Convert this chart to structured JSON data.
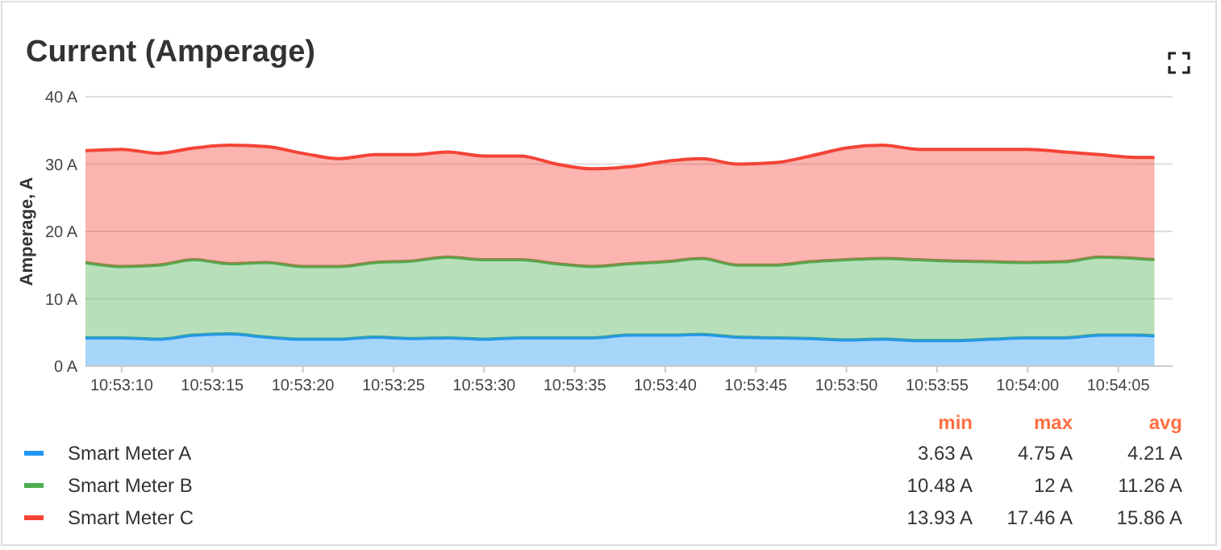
{
  "chart_data": {
    "type": "area",
    "title": "Current (Amperage)",
    "ylabel": "Amperage, A",
    "stacked": true,
    "grid": "y",
    "legend": "bottom",
    "x": [
      10.885556,
      10.886111,
      10.886667,
      10.887222,
      10.887778,
      10.888333,
      10.888889,
      10.889444,
      10.89,
      10.890556,
      10.891111,
      10.891667,
      10.892222,
      10.892778,
      10.893333,
      10.893889,
      10.894444,
      10.895,
      10.895556,
      10.896111,
      10.896667,
      10.897222,
      10.897778,
      10.898333,
      10.898889,
      10.899444,
      10.9,
      10.900556,
      10.901111,
      10.901667,
      10.901944
    ],
    "xlim": [
      10.885556,
      10.902222
    ],
    "xticks": [
      {
        "value": 10.886111,
        "label": "10:53:10"
      },
      {
        "value": 10.8875,
        "label": "10:53:15"
      },
      {
        "value": 10.888889,
        "label": "10:53:20"
      },
      {
        "value": 10.890278,
        "label": "10:53:25"
      },
      {
        "value": 10.891667,
        "label": "10:53:30"
      },
      {
        "value": 10.893056,
        "label": "10:53:35"
      },
      {
        "value": 10.894444,
        "label": "10:53:40"
      },
      {
        "value": 10.895833,
        "label": "10:53:45"
      },
      {
        "value": 10.897222,
        "label": "10:53:50"
      },
      {
        "value": 10.898611,
        "label": "10:53:55"
      },
      {
        "value": 10.9,
        "label": "10:54:00"
      },
      {
        "value": 10.901389,
        "label": "10:54:05"
      }
    ],
    "ylim": [
      0,
      40
    ],
    "yticks": [
      {
        "value": 0,
        "label": "0 A"
      },
      {
        "value": 10,
        "label": "10 A"
      },
      {
        "value": 20,
        "label": "20 A"
      },
      {
        "value": 30,
        "label": "30 A"
      },
      {
        "value": 40,
        "label": "40 A"
      }
    ],
    "series": [
      {
        "name": "Smart Meter A",
        "color": "#2196f3",
        "values": [
          4.2,
          4.2,
          4.0,
          4.6,
          4.8,
          4.3,
          4.0,
          4.0,
          4.3,
          4.1,
          4.2,
          4.0,
          4.2,
          4.2,
          4.2,
          4.6,
          4.6,
          4.7,
          4.3,
          4.2,
          4.1,
          3.9,
          4.0,
          3.8,
          3.8,
          4.0,
          4.2,
          4.2,
          4.6,
          4.6,
          4.5
        ]
      },
      {
        "name": "Smart Meter B",
        "color": "#4caf50",
        "values": [
          11.2,
          10.6,
          11.0,
          11.2,
          10.4,
          11.1,
          10.8,
          10.8,
          11.1,
          11.5,
          12.0,
          11.8,
          11.6,
          11.0,
          10.6,
          10.6,
          10.9,
          11.3,
          10.7,
          10.8,
          11.4,
          11.9,
          12.0,
          12.0,
          11.8,
          11.5,
          11.2,
          11.3,
          11.6,
          11.4,
          11.3
        ]
      },
      {
        "name": "Smart Meter C",
        "color": "#f44336",
        "values": [
          16.6,
          17.4,
          16.6,
          16.6,
          17.6,
          17.2,
          16.8,
          16.0,
          16.0,
          15.8,
          15.6,
          15.4,
          15.4,
          14.8,
          14.5,
          14.4,
          14.9,
          14.8,
          15.0,
          15.2,
          15.7,
          16.6,
          16.8,
          16.4,
          16.6,
          16.7,
          16.8,
          16.3,
          15.2,
          15.0,
          15.2
        ]
      }
    ],
    "annotations": [
      "min",
      "max",
      "avg",
      "3.63 A",
      "4.75 A",
      "4.21 A",
      "10.48 A",
      "12 A",
      "11.26 A",
      "13.93 A",
      "17.46 A",
      "15.86 A"
    ]
  }
}
